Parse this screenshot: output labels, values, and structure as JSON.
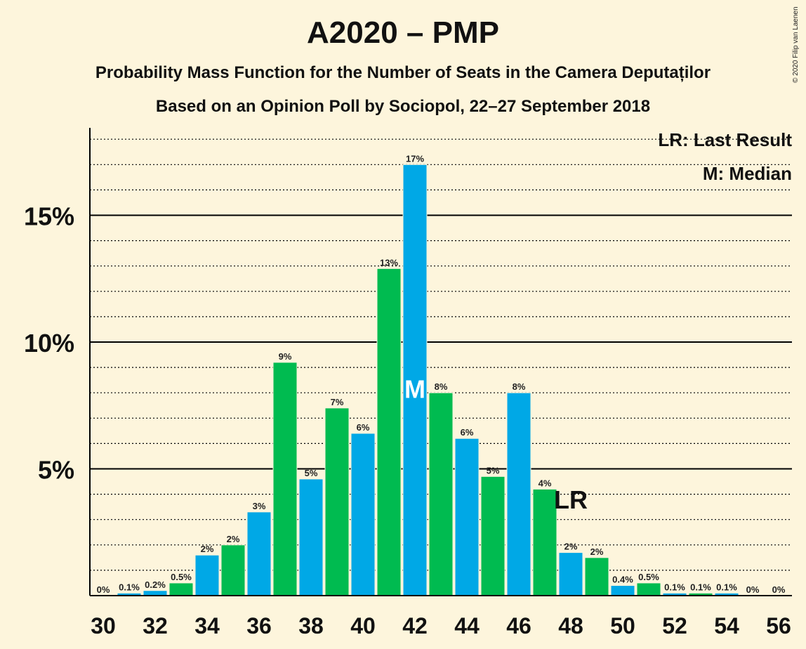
{
  "header": {
    "title": "A2020 – PMP",
    "subtitle": "Probability Mass Function for the Number of Seats in the Camera Deputaților",
    "subtitle2": "Based on an Opinion Poll by Sociopol, 22–27 September 2018",
    "copyright": "© 2020 Filip van Laenen"
  },
  "legend": {
    "last_result": "LR: Last Result",
    "median": "M: Median"
  },
  "colors": {
    "blue": "#00a8e6",
    "green": "#00bb50",
    "background": "#fdf5dc"
  },
  "chart_data": {
    "type": "bar",
    "x": [
      30,
      31,
      32,
      33,
      34,
      35,
      36,
      37,
      38,
      39,
      40,
      41,
      42,
      43,
      44,
      45,
      46,
      47,
      48,
      49,
      50,
      51,
      52,
      53,
      54,
      55,
      56
    ],
    "values": [
      0,
      0.1,
      0.2,
      0.5,
      1.6,
      2,
      3.3,
      9.2,
      4.6,
      7.4,
      6.4,
      12.9,
      17,
      8,
      6.2,
      4.7,
      8,
      4.2,
      1.7,
      1.5,
      0.4,
      0.5,
      0.1,
      0.1,
      0.1,
      0,
      0
    ],
    "labels": [
      "0%",
      "0.1%",
      "0.2%",
      "0.5%",
      "2%",
      "2%",
      "3%",
      "9%",
      "5%",
      "7%",
      "6%",
      "13%",
      "17%",
      "8%",
      "6%",
      "5%",
      "8%",
      "4%",
      "2%",
      "2%",
      "0.4%",
      "0.5%",
      "0.1%",
      "0.1%",
      "0.1%",
      "0%",
      "0%"
    ],
    "bar_colors": [
      "blue",
      "blue",
      "blue",
      "green",
      "blue",
      "green",
      "blue",
      "green",
      "blue",
      "green",
      "blue",
      "green",
      "blue",
      "green",
      "blue",
      "green",
      "blue",
      "green",
      "blue",
      "green",
      "blue",
      "green",
      "blue",
      "green",
      "blue",
      "green",
      "blue"
    ],
    "x_ticks": [
      "30",
      "32",
      "34",
      "36",
      "38",
      "40",
      "42",
      "44",
      "46",
      "48",
      "50",
      "52",
      "54",
      "56"
    ],
    "y_ticks": [
      {
        "value": 5,
        "label": "5%"
      },
      {
        "value": 10,
        "label": "10%"
      },
      {
        "value": 15,
        "label": "15%"
      }
    ],
    "ylim": [
      0,
      18.5
    ],
    "median_seat": 42,
    "median_marker": "M",
    "last_result_seat": 48,
    "last_result_marker": "LR",
    "grid": "dotted every 1%, solid every 5%"
  }
}
